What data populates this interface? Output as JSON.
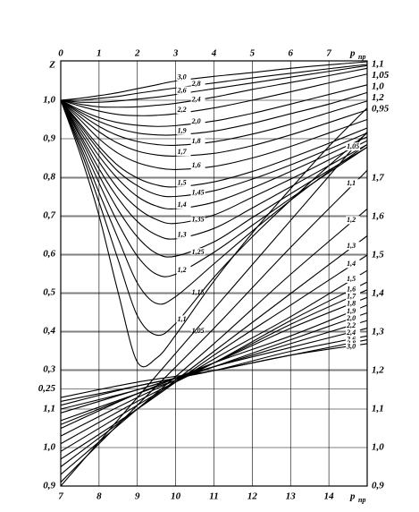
{
  "chart_data": [
    {
      "type": "line",
      "y_label": "Z",
      "x_label": "p",
      "x_label_sub": "пр",
      "xlim": [
        0,
        8
      ],
      "xticks": [
        0,
        1,
        2,
        3,
        4,
        5,
        6,
        7
      ],
      "ylim": [
        0.25,
        1.1
      ],
      "yticks": [
        {
          "value": 1.0,
          "label": "1,0"
        },
        {
          "value": 0.9,
          "label": "0,9"
        },
        {
          "value": 0.8,
          "label": "0,8"
        },
        {
          "value": 0.7,
          "label": "0,7"
        },
        {
          "value": 0.6,
          "label": "0,6"
        },
        {
          "value": 0.5,
          "label": "0,5"
        },
        {
          "value": 0.4,
          "label": "0,4"
        },
        {
          "value": 0.3,
          "label": "0,3"
        },
        {
          "value": 0.25,
          "label": "0,25"
        }
      ],
      "grid": true,
      "color": "#000000",
      "annotations": [
        "1,1",
        "1,05",
        "1,0",
        "1,2",
        "0,95"
      ],
      "x": [
        0,
        0.5,
        1,
        1.5,
        2,
        2.5,
        3,
        4,
        5,
        6,
        7,
        8
      ],
      "series": [
        {
          "name": "3,0",
          "values": [
            1,
            1.005,
            1.012,
            1.02,
            1.03,
            1.04,
            1.05,
            1.062,
            1.072,
            1.083,
            1.092,
            1.1
          ]
        },
        {
          "name": "2,8",
          "values": [
            1,
            1.0,
            1.005,
            1.01,
            1.018,
            1.025,
            1.032,
            1.045,
            1.058,
            1.07,
            1.082,
            1.093
          ]
        },
        {
          "name": "2,6",
          "values": [
            1,
            0.995,
            0.995,
            0.998,
            1.003,
            1.008,
            1.015,
            1.03,
            1.045,
            1.06,
            1.075,
            1.09
          ]
        },
        {
          "name": "2,4",
          "values": [
            1,
            0.99,
            0.983,
            0.982,
            0.983,
            0.987,
            0.992,
            1.008,
            1.028,
            1.046,
            1.064,
            1.083
          ]
        },
        {
          "name": "2,2",
          "values": [
            1,
            0.985,
            0.972,
            0.963,
            0.96,
            0.961,
            0.965,
            0.98,
            1.0,
            1.022,
            1.045,
            1.068
          ]
        },
        {
          "name": "2,0",
          "values": [
            1,
            0.975,
            0.955,
            0.942,
            0.935,
            0.932,
            0.934,
            0.946,
            0.966,
            0.99,
            1.015,
            1.04
          ]
        },
        {
          "name": "1,9",
          "values": [
            1,
            0.97,
            0.945,
            0.927,
            0.915,
            0.91,
            0.91,
            0.92,
            0.94,
            0.965,
            0.99,
            1.02
          ]
        },
        {
          "name": "1,8",
          "values": [
            1,
            0.965,
            0.932,
            0.908,
            0.893,
            0.885,
            0.883,
            0.892,
            0.912,
            0.938,
            0.968,
            0.998
          ]
        },
        {
          "name": "1,7",
          "values": [
            1,
            0.958,
            0.918,
            0.888,
            0.868,
            0.858,
            0.855,
            0.862,
            0.882,
            0.91,
            0.942,
            0.975
          ]
        },
        {
          "name": "1,6",
          "values": [
            1,
            0.95,
            0.9,
            0.862,
            0.838,
            0.825,
            0.82,
            0.828,
            0.85,
            0.88,
            0.915,
            0.95
          ]
        },
        {
          "name": "1,5",
          "values": [
            1,
            0.94,
            0.88,
            0.83,
            0.798,
            0.78,
            0.775,
            0.788,
            0.815,
            0.85,
            0.888,
            0.928
          ]
        },
        {
          "name": "1,45",
          "values": [
            1,
            0.935,
            0.87,
            0.815,
            0.778,
            0.755,
            0.75,
            0.765,
            0.795,
            0.832,
            0.873,
            0.915
          ]
        },
        {
          "name": "1,4",
          "values": [
            1,
            0.928,
            0.855,
            0.795,
            0.75,
            0.725,
            0.718,
            0.735,
            0.772,
            0.815,
            0.86,
            0.905
          ]
        },
        {
          "name": "1,35",
          "values": [
            1,
            0.92,
            0.84,
            0.77,
            0.72,
            0.69,
            0.68,
            0.702,
            0.748,
            0.795,
            0.845,
            0.895
          ]
        },
        {
          "name": "1,3",
          "values": [
            1,
            0.912,
            0.822,
            0.745,
            0.685,
            0.65,
            0.64,
            0.667,
            0.72,
            0.775,
            0.83,
            0.885
          ]
        },
        {
          "name": "1,25",
          "values": [
            1,
            0.905,
            0.805,
            0.715,
            0.645,
            0.602,
            0.595,
            0.632,
            0.695,
            0.757,
            0.818,
            0.878
          ]
        },
        {
          "name": "1,2",
          "values": [
            1,
            0.895,
            0.785,
            0.68,
            0.595,
            0.548,
            0.548,
            0.605,
            0.675,
            0.745,
            0.812,
            0.878
          ]
        },
        {
          "name": "1,15",
          "values": [
            1,
            0.885,
            0.76,
            0.64,
            0.525,
            0.472,
            0.49,
            0.575,
            0.66,
            0.74,
            0.815,
            0.885
          ]
        },
        {
          "name": "1,1",
          "values": [
            1,
            0.875,
            0.735,
            0.585,
            0.44,
            0.39,
            0.42,
            0.54,
            0.645,
            0.74,
            0.83,
            0.915
          ]
        },
        {
          "name": "1,05",
          "values": [
            1,
            0.862,
            0.7,
            0.5,
            0.32,
            0.33,
            0.39,
            0.53,
            0.655,
            0.77,
            0.88,
            0.98
          ]
        }
      ]
    },
    {
      "type": "line",
      "x_label": "p",
      "x_label_sub": "пр",
      "xlim": [
        7,
        15
      ],
      "xticks": [
        7,
        8,
        9,
        10,
        11,
        12,
        13,
        14
      ],
      "ylim": [
        0.9,
        2.0
      ],
      "yticks": [
        {
          "value": 1.7,
          "label": "1,7"
        },
        {
          "value": 1.6,
          "label": "1,6"
        },
        {
          "value": 1.5,
          "label": "1,5"
        },
        {
          "value": 1.4,
          "label": "1,4"
        },
        {
          "value": 1.3,
          "label": "1,3"
        },
        {
          "value": 1.2,
          "label": "1,2"
        },
        {
          "value": 1.1,
          "label": "1,1"
        },
        {
          "value": 1.0,
          "label": "1,0"
        },
        {
          "value": 0.9,
          "label": "0,9"
        }
      ],
      "y_left_ticks": [
        {
          "value": 1.1,
          "label": "1,1"
        },
        {
          "value": 1.0,
          "label": "1,0"
        },
        {
          "value": 0.9,
          "label": "0,9"
        }
      ],
      "grid": true,
      "color": "#000000",
      "x": [
        7,
        9,
        11,
        13,
        15
      ],
      "series": [
        {
          "name": "1,05",
          "values": [
            0.9,
            1.13,
            1.36,
            1.59,
            1.82
          ]
        },
        {
          "name": "1,1",
          "values": [
            0.91,
            1.11,
            1.31,
            1.52,
            1.72
          ]
        },
        {
          "name": "1,2",
          "values": [
            0.93,
            1.1,
            1.27,
            1.45,
            1.62
          ]
        },
        {
          "name": "1,3",
          "values": [
            0.95,
            1.1,
            1.25,
            1.4,
            1.55
          ]
        },
        {
          "name": "1,4",
          "values": [
            0.97,
            1.1,
            1.24,
            1.37,
            1.5
          ]
        },
        {
          "name": "1,5",
          "values": [
            0.99,
            1.11,
            1.23,
            1.34,
            1.46
          ]
        },
        {
          "name": "1,6",
          "values": [
            1.01,
            1.12,
            1.22,
            1.33,
            1.43
          ]
        },
        {
          "name": "1,7",
          "values": [
            1.03,
            1.13,
            1.22,
            1.32,
            1.41
          ]
        },
        {
          "name": "1,8",
          "values": [
            1.05,
            1.14,
            1.22,
            1.31,
            1.39
          ]
        },
        {
          "name": "1,9",
          "values": [
            1.06,
            1.14,
            1.22,
            1.29,
            1.37
          ]
        },
        {
          "name": "2,0",
          "values": [
            1.07,
            1.14,
            1.21,
            1.28,
            1.35
          ]
        },
        {
          "name": "2,2",
          "values": [
            1.09,
            1.15,
            1.21,
            1.27,
            1.33
          ]
        },
        {
          "name": "2,4",
          "values": [
            1.1,
            1.15,
            1.21,
            1.26,
            1.31
          ]
        },
        {
          "name": "2,6",
          "values": [
            1.11,
            1.16,
            1.2,
            1.25,
            1.29
          ]
        },
        {
          "name": "2,8",
          "values": [
            1.12,
            1.16,
            1.2,
            1.24,
            1.28
          ]
        },
        {
          "name": "3,0",
          "values": [
            1.13,
            1.17,
            1.2,
            1.24,
            1.27
          ]
        }
      ]
    }
  ]
}
